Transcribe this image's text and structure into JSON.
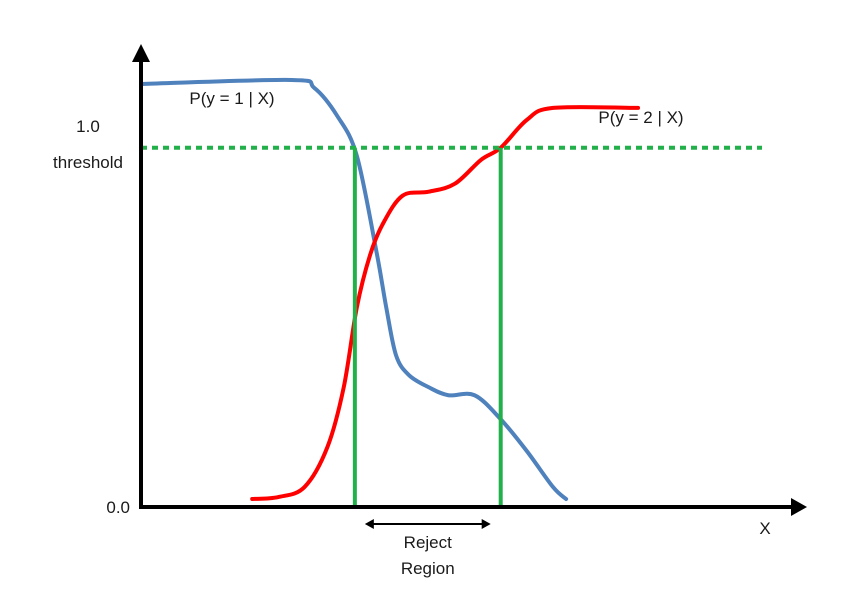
{
  "chart_data": {
    "type": "line",
    "xlabel": "X",
    "ylabel": "",
    "xlim": [
      0,
      10
    ],
    "ylim": [
      0,
      1.12
    ],
    "y_ticks": [
      {
        "value": 0,
        "label": "0.0"
      },
      {
        "value": 1.0,
        "label": "1.0"
      }
    ],
    "threshold": {
      "value": 0.9,
      "label": "threshold",
      "color": "#22b04b"
    },
    "reject_region": {
      "x_start": 3.27,
      "x_end": 5.5,
      "label_line1": "Reject",
      "label_line2": "Region"
    },
    "series": [
      {
        "name": "P(y = 1 | X)",
        "color": "#4f81bd",
        "x": [
          0,
          2.3,
          2.65,
          3.0,
          3.3,
          3.6,
          3.75,
          3.9,
          4.1,
          4.4,
          4.7,
          5.1,
          5.5,
          5.9,
          6.3,
          6.5
        ],
        "y": [
          1.06,
          1.07,
          1.05,
          0.98,
          0.88,
          0.64,
          0.5,
          0.38,
          0.33,
          0.3,
          0.28,
          0.28,
          0.22,
          0.14,
          0.05,
          0.02
        ]
      },
      {
        "name": "P(y = 2 | X)",
        "color": "#ff0000",
        "x": [
          1.7,
          2.1,
          2.5,
          2.85,
          3.1,
          3.3,
          3.5,
          3.7,
          4.0,
          4.4,
          4.8,
          5.2,
          5.5,
          5.9,
          6.3,
          7.6
        ],
        "y": [
          0.02,
          0.025,
          0.05,
          0.15,
          0.3,
          0.5,
          0.63,
          0.71,
          0.78,
          0.79,
          0.81,
          0.87,
          0.9,
          0.97,
          1.0,
          1.0
        ]
      }
    ]
  }
}
